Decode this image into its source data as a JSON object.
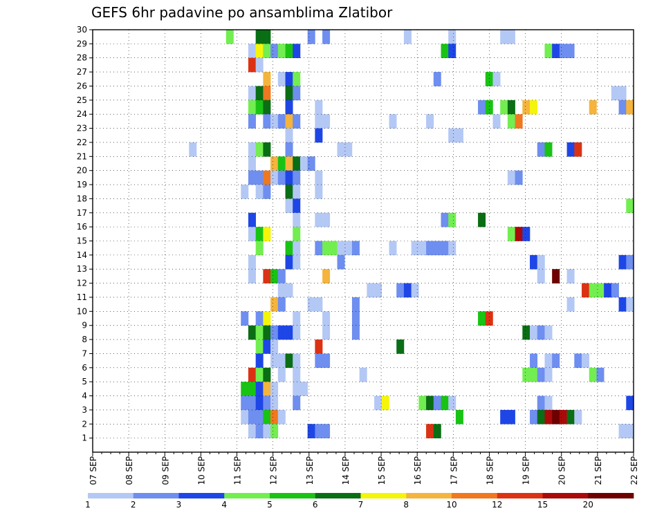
{
  "chart_data": {
    "type": "heatmap",
    "title": "GEFS 6hr padavine po ansamblima Zlatibor",
    "x_tick_labels": [
      "07 SEP",
      "08 SEP",
      "09 SEP",
      "10 SEP",
      "11 SEP",
      "12 SEP",
      "13 SEP",
      "14 SEP",
      "15 SEP",
      "16 SEP",
      "17 SEP",
      "18 SEP",
      "19 SEP",
      "20 SEP",
      "21 SEP",
      "22 SEP"
    ],
    "y_tick_labels": [
      "1",
      "2",
      "3",
      "4",
      "5",
      "6",
      "7",
      "8",
      "9",
      "10",
      "11",
      "12",
      "13",
      "14",
      "15",
      "16",
      "17",
      "18",
      "19",
      "20",
      "21",
      "22",
      "23",
      "24",
      "25",
      "26",
      "27",
      "28",
      "29",
      "30"
    ],
    "x_range_days": [
      0,
      15
    ],
    "y_range": [
      0,
      30
    ],
    "grid": true,
    "colorbar": {
      "labels": [
        "1",
        "2",
        "3",
        "4",
        "5",
        "6",
        "7",
        "8",
        "10",
        "12",
        "15",
        "20"
      ],
      "colors": [
        "#b4c8f5",
        "#6e8ef0",
        "#1e46e6",
        "#72ee50",
        "#19c314",
        "#0a6e14",
        "#f5f50a",
        "#f5b43c",
        "#f0781e",
        "#dc3214",
        "#aa0a0a",
        "#6e0000"
      ]
    },
    "cells": [
      [
        30,
        18,
        3
      ],
      [
        30,
        22,
        5
      ],
      [
        30,
        23,
        5
      ],
      [
        30,
        29,
        1
      ],
      [
        30,
        31,
        1
      ],
      [
        30,
        42,
        0
      ],
      [
        30,
        48,
        0
      ],
      [
        30,
        55,
        0
      ],
      [
        30,
        56,
        0
      ],
      [
        29,
        21,
        0
      ],
      [
        29,
        22,
        6
      ],
      [
        29,
        23,
        3
      ],
      [
        29,
        24,
        1
      ],
      [
        29,
        25,
        3
      ],
      [
        29,
        26,
        4
      ],
      [
        29,
        27,
        2
      ],
      [
        29,
        47,
        4
      ],
      [
        29,
        48,
        2
      ],
      [
        29,
        61,
        3
      ],
      [
        29,
        62,
        2
      ],
      [
        29,
        63,
        1
      ],
      [
        29,
        64,
        1
      ],
      [
        28,
        21,
        9
      ],
      [
        28,
        22,
        0
      ],
      [
        27,
        23,
        7
      ],
      [
        27,
        25,
        0
      ],
      [
        27,
        26,
        2
      ],
      [
        27,
        27,
        3
      ],
      [
        27,
        46,
        1
      ],
      [
        27,
        53,
        4
      ],
      [
        27,
        54,
        0
      ],
      [
        26,
        21,
        0
      ],
      [
        26,
        22,
        5
      ],
      [
        26,
        23,
        8
      ],
      [
        26,
        26,
        5
      ],
      [
        26,
        27,
        1
      ],
      [
        26,
        70,
        0
      ],
      [
        26,
        71,
        0
      ],
      [
        25,
        21,
        3
      ],
      [
        25,
        22,
        4
      ],
      [
        25,
        23,
        5
      ],
      [
        25,
        26,
        2
      ],
      [
        25,
        30,
        0
      ],
      [
        25,
        52,
        1
      ],
      [
        25,
        53,
        4
      ],
      [
        25,
        55,
        3
      ],
      [
        25,
        56,
        5
      ],
      [
        25,
        58,
        7
      ],
      [
        25,
        59,
        6
      ],
      [
        25,
        67,
        7
      ],
      [
        25,
        71,
        1
      ],
      [
        25,
        72,
        7
      ],
      [
        24,
        21,
        1
      ],
      [
        24,
        23,
        1
      ],
      [
        24,
        24,
        0
      ],
      [
        24,
        25,
        1
      ],
      [
        24,
        26,
        7
      ],
      [
        24,
        27,
        1
      ],
      [
        24,
        30,
        0
      ],
      [
        24,
        31,
        0
      ],
      [
        24,
        40,
        0
      ],
      [
        24,
        45,
        0
      ],
      [
        24,
        54,
        0
      ],
      [
        24,
        56,
        3
      ],
      [
        24,
        57,
        8
      ],
      [
        23,
        26,
        0
      ],
      [
        23,
        30,
        2
      ],
      [
        23,
        48,
        0
      ],
      [
        23,
        49,
        0
      ],
      [
        22,
        13,
        0
      ],
      [
        22,
        21,
        0
      ],
      [
        22,
        22,
        3
      ],
      [
        22,
        23,
        5
      ],
      [
        22,
        26,
        1
      ],
      [
        22,
        33,
        0
      ],
      [
        22,
        34,
        0
      ],
      [
        22,
        60,
        1
      ],
      [
        22,
        61,
        4
      ],
      [
        22,
        64,
        2
      ],
      [
        22,
        65,
        9
      ],
      [
        21,
        21,
        0
      ],
      [
        21,
        24,
        7
      ],
      [
        21,
        25,
        4
      ],
      [
        21,
        26,
        7
      ],
      [
        21,
        27,
        5
      ],
      [
        21,
        28,
        0
      ],
      [
        21,
        29,
        1
      ],
      [
        20,
        21,
        1
      ],
      [
        20,
        22,
        1
      ],
      [
        20,
        23,
        8
      ],
      [
        20,
        24,
        0
      ],
      [
        20,
        25,
        1
      ],
      [
        20,
        26,
        2
      ],
      [
        20,
        27,
        1
      ],
      [
        20,
        30,
        0
      ],
      [
        20,
        56,
        0
      ],
      [
        20,
        57,
        1
      ],
      [
        19,
        20,
        0
      ],
      [
        19,
        22,
        0
      ],
      [
        19,
        23,
        1
      ],
      [
        19,
        26,
        5
      ],
      [
        19,
        27,
        0
      ],
      [
        19,
        30,
        0
      ],
      [
        18,
        26,
        0
      ],
      [
        18,
        27,
        2
      ],
      [
        18,
        72,
        3
      ],
      [
        17,
        21,
        2
      ],
      [
        17,
        27,
        0
      ],
      [
        17,
        30,
        0
      ],
      [
        17,
        31,
        0
      ],
      [
        17,
        47,
        1
      ],
      [
        17,
        48,
        3
      ],
      [
        17,
        52,
        5
      ],
      [
        16,
        21,
        0
      ],
      [
        16,
        22,
        4
      ],
      [
        16,
        23,
        6
      ],
      [
        16,
        27,
        3
      ],
      [
        16,
        56,
        3
      ],
      [
        16,
        57,
        10
      ],
      [
        16,
        58,
        2
      ],
      [
        15,
        22,
        3
      ],
      [
        15,
        26,
        4
      ],
      [
        15,
        27,
        0
      ],
      [
        15,
        30,
        1
      ],
      [
        15,
        31,
        3
      ],
      [
        15,
        32,
        3
      ],
      [
        15,
        33,
        0
      ],
      [
        15,
        34,
        0
      ],
      [
        15,
        35,
        1
      ],
      [
        15,
        40,
        0
      ],
      [
        15,
        43,
        0
      ],
      [
        15,
        44,
        0
      ],
      [
        15,
        45,
        1
      ],
      [
        15,
        46,
        1
      ],
      [
        15,
        47,
        1
      ],
      [
        15,
        48,
        0
      ],
      [
        14,
        21,
        0
      ],
      [
        14,
        26,
        2
      ],
      [
        14,
        27,
        0
      ],
      [
        14,
        33,
        1
      ],
      [
        14,
        59,
        2
      ],
      [
        14,
        60,
        0
      ],
      [
        14,
        71,
        2
      ],
      [
        14,
        72,
        1
      ],
      [
        13,
        21,
        0
      ],
      [
        13,
        23,
        9
      ],
      [
        13,
        24,
        4
      ],
      [
        13,
        25,
        1
      ],
      [
        13,
        31,
        7
      ],
      [
        13,
        60,
        0
      ],
      [
        13,
        62,
        11
      ],
      [
        13,
        64,
        0
      ],
      [
        12,
        25,
        0
      ],
      [
        12,
        26,
        0
      ],
      [
        12,
        37,
        0
      ],
      [
        12,
        38,
        0
      ],
      [
        12,
        41,
        1
      ],
      [
        12,
        42,
        2
      ],
      [
        12,
        43,
        0
      ],
      [
        12,
        66,
        9
      ],
      [
        12,
        67,
        3
      ],
      [
        12,
        68,
        3
      ],
      [
        12,
        69,
        2
      ],
      [
        12,
        70,
        1
      ],
      [
        11,
        24,
        7
      ],
      [
        11,
        25,
        1
      ],
      [
        11,
        29,
        0
      ],
      [
        11,
        30,
        0
      ],
      [
        11,
        35,
        1
      ],
      [
        11,
        64,
        0
      ],
      [
        11,
        71,
        2
      ],
      [
        11,
        72,
        0
      ],
      [
        10,
        20,
        1
      ],
      [
        10,
        22,
        1
      ],
      [
        10,
        23,
        6
      ],
      [
        10,
        27,
        0
      ],
      [
        10,
        31,
        0
      ],
      [
        10,
        35,
        1
      ],
      [
        10,
        52,
        4
      ],
      [
        10,
        53,
        9
      ],
      [
        9,
        21,
        5
      ],
      [
        9,
        22,
        3
      ],
      [
        9,
        23,
        5
      ],
      [
        9,
        24,
        1
      ],
      [
        9,
        25,
        2
      ],
      [
        9,
        26,
        2
      ],
      [
        9,
        27,
        0
      ],
      [
        9,
        31,
        0
      ],
      [
        9,
        35,
        1
      ],
      [
        9,
        58,
        5
      ],
      [
        9,
        59,
        0
      ],
      [
        9,
        60,
        1
      ],
      [
        9,
        61,
        0
      ],
      [
        8,
        22,
        3
      ],
      [
        8,
        23,
        2
      ],
      [
        8,
        24,
        0
      ],
      [
        8,
        30,
        9
      ],
      [
        8,
        41,
        5
      ],
      [
        7,
        22,
        2
      ],
      [
        7,
        24,
        0
      ],
      [
        7,
        25,
        0
      ],
      [
        7,
        26,
        5
      ],
      [
        7,
        27,
        0
      ],
      [
        7,
        30,
        1
      ],
      [
        7,
        31,
        1
      ],
      [
        7,
        59,
        1
      ],
      [
        7,
        61,
        0
      ],
      [
        7,
        62,
        1
      ],
      [
        7,
        65,
        1
      ],
      [
        7,
        66,
        0
      ],
      [
        6,
        21,
        9
      ],
      [
        6,
        22,
        3
      ],
      [
        6,
        23,
        5
      ],
      [
        6,
        25,
        0
      ],
      [
        6,
        27,
        0
      ],
      [
        6,
        36,
        0
      ],
      [
        6,
        58,
        3
      ],
      [
        6,
        59,
        3
      ],
      [
        6,
        60,
        1
      ],
      [
        6,
        61,
        0
      ],
      [
        6,
        67,
        3
      ],
      [
        6,
        68,
        1
      ],
      [
        5,
        20,
        4
      ],
      [
        5,
        21,
        4
      ],
      [
        5,
        22,
        2
      ],
      [
        5,
        23,
        7
      ],
      [
        5,
        24,
        0
      ],
      [
        5,
        27,
        0
      ],
      [
        5,
        28,
        0
      ],
      [
        4,
        20,
        1
      ],
      [
        4,
        21,
        1
      ],
      [
        4,
        22,
        2
      ],
      [
        4,
        23,
        1
      ],
      [
        4,
        24,
        0
      ],
      [
        4,
        27,
        1
      ],
      [
        4,
        38,
        0
      ],
      [
        4,
        39,
        6
      ],
      [
        4,
        44,
        3
      ],
      [
        4,
        45,
        5
      ],
      [
        4,
        46,
        1
      ],
      [
        4,
        47,
        4
      ],
      [
        4,
        48,
        0
      ],
      [
        4,
        60,
        1
      ],
      [
        4,
        61,
        0
      ],
      [
        4,
        72,
        2
      ],
      [
        3,
        20,
        0
      ],
      [
        3,
        21,
        1
      ],
      [
        3,
        22,
        1
      ],
      [
        3,
        23,
        4
      ],
      [
        3,
        24,
        8
      ],
      [
        3,
        25,
        0
      ],
      [
        3,
        49,
        4
      ],
      [
        3,
        55,
        2
      ],
      [
        3,
        56,
        2
      ],
      [
        3,
        59,
        1
      ],
      [
        3,
        60,
        5
      ],
      [
        3,
        61,
        10
      ],
      [
        3,
        62,
        11
      ],
      [
        3,
        63,
        10
      ],
      [
        3,
        64,
        5
      ],
      [
        3,
        65,
        0
      ],
      [
        2,
        21,
        0
      ],
      [
        2,
        22,
        1
      ],
      [
        2,
        23,
        0
      ],
      [
        2,
        24,
        3
      ],
      [
        2,
        29,
        2
      ],
      [
        2,
        30,
        1
      ],
      [
        2,
        31,
        1
      ],
      [
        2,
        45,
        9
      ],
      [
        2,
        46,
        5
      ],
      [
        2,
        71,
        0
      ],
      [
        2,
        72,
        0
      ]
    ]
  }
}
